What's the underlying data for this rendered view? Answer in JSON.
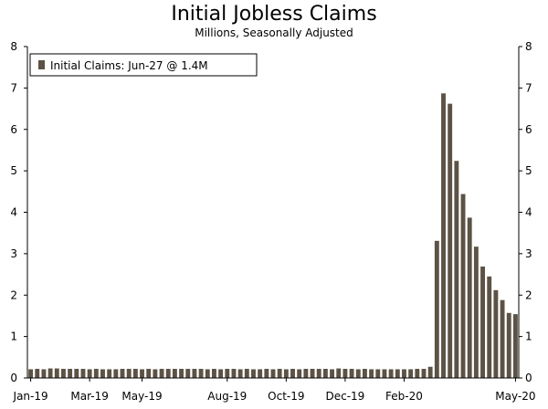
{
  "chart_data": {
    "type": "bar",
    "title": "Initial Jobless Claims",
    "subtitle": "Millions, Seasonally Adjusted",
    "legend": "Initial Claims: Jun-27 @ 1.4M",
    "legend_position": "top-left",
    "ylim": [
      0,
      8
    ],
    "yticks": [
      0,
      1,
      2,
      3,
      4,
      5,
      6,
      7,
      8
    ],
    "xtick_labels": [
      "Jan-19",
      "Mar-19",
      "May-19",
      "Aug-19",
      "Oct-19",
      "Dec-19",
      "Feb-20",
      "May-20"
    ],
    "xtick_positions": [
      0,
      9,
      17,
      30,
      39,
      48,
      57,
      74
    ],
    "grid": false,
    "bar_color": "#5c5245",
    "values": [
      0.21,
      0.22,
      0.21,
      0.23,
      0.23,
      0.22,
      0.22,
      0.22,
      0.22,
      0.21,
      0.22,
      0.21,
      0.21,
      0.21,
      0.22,
      0.22,
      0.22,
      0.21,
      0.22,
      0.21,
      0.22,
      0.22,
      0.22,
      0.22,
      0.22,
      0.22,
      0.22,
      0.21,
      0.22,
      0.21,
      0.22,
      0.22,
      0.21,
      0.22,
      0.21,
      0.21,
      0.22,
      0.21,
      0.22,
      0.21,
      0.22,
      0.21,
      0.22,
      0.22,
      0.22,
      0.22,
      0.21,
      0.23,
      0.22,
      0.22,
      0.21,
      0.22,
      0.21,
      0.21,
      0.21,
      0.21,
      0.21,
      0.21,
      0.21,
      0.22,
      0.22,
      0.27,
      3.31,
      6.87,
      6.62,
      5.24,
      4.44,
      3.87,
      3.17,
      2.69,
      2.45,
      2.12,
      1.88,
      1.57,
      1.54
    ]
  }
}
